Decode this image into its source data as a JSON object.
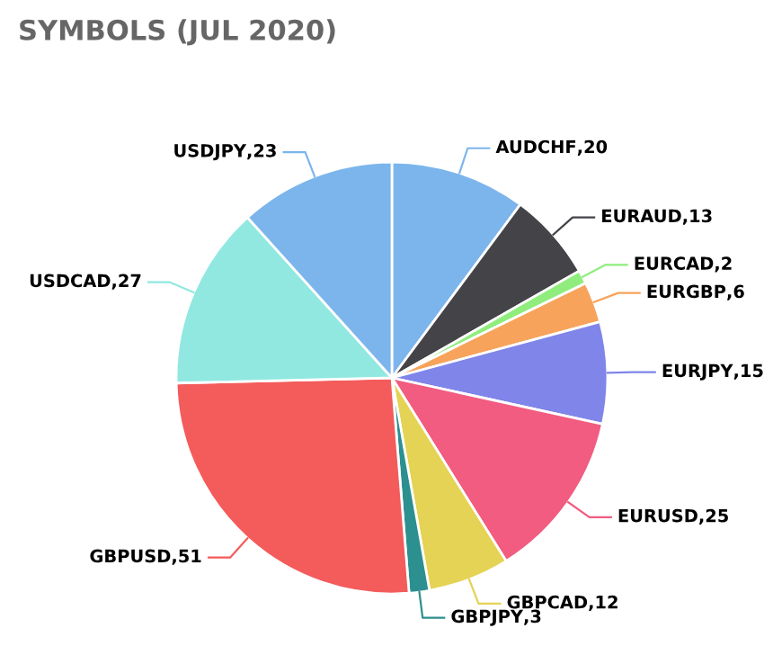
{
  "chart_data": {
    "type": "pie",
    "title": "SYMBOLS (JUL 2020)",
    "categories": [
      "AUDCHF",
      "EURAUD",
      "EURCAD",
      "EURGBP",
      "EURJPY",
      "EURUSD",
      "GBPCAD",
      "GBPJPY",
      "GBPUSD",
      "USDCAD",
      "USDJPY"
    ],
    "values": [
      20,
      13,
      2,
      6,
      15,
      25,
      12,
      3,
      51,
      27,
      23
    ],
    "colors": [
      "#7cb5ec",
      "#434348",
      "#90ed7d",
      "#f7a35c",
      "#8085e9",
      "#f15c80",
      "#e4d354",
      "#2b908f",
      "#f45b5b",
      "#91e8e1",
      "#7cb5ec"
    ],
    "value_labels": [
      ",20",
      ",13",
      ",2",
      ",6",
      ",15",
      ",25",
      ",12",
      ",3",
      ",51",
      ",27",
      ",23"
    ],
    "legend": false
  }
}
